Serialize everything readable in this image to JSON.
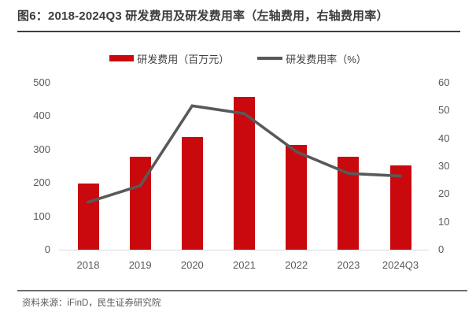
{
  "figure": {
    "title": "图6：2018-2024Q3 研发费用及研发费用率（左轴费用，右轴费用率）",
    "source": "资料来源：iFinD，民生证券研究院"
  },
  "legend": [
    {
      "swatch": "bar-swatch-icon",
      "label": "研发费用（百万元）"
    },
    {
      "swatch": "line-swatch-icon",
      "label": "研发费用率（%）"
    }
  ],
  "colors": {
    "bar": "#c9090d",
    "line": "#595959",
    "title_text": "#3c3c3c",
    "axis_text": "#595959",
    "axis_line": "#d9d9d9",
    "rule_top": "#3e3e3e",
    "rule_bottom": "#6e6e6e"
  },
  "chart_data": {
    "type": "bar",
    "subtype": "bar-and-line-combo",
    "categories": [
      "2018",
      "2019",
      "2020",
      "2021",
      "2022",
      "2023",
      "2024Q3"
    ],
    "series": [
      {
        "name": "研发费用（百万元）",
        "type": "bar",
        "axis": "left",
        "values": [
          198,
          278,
          337,
          457,
          313,
          279,
          252
        ]
      },
      {
        "name": "研发费用率（%）",
        "type": "line",
        "axis": "right",
        "values": [
          17.1,
          23.0,
          51.7,
          48.9,
          35.2,
          27.4,
          26.5
        ]
      }
    ],
    "left_axis": {
      "min": 0,
      "max": 500,
      "step": 100,
      "ticks": [
        0,
        100,
        200,
        300,
        400,
        500
      ]
    },
    "right_axis": {
      "min": 0,
      "max": 60,
      "step": 10,
      "ticks": [
        0,
        10,
        20,
        30,
        40,
        50,
        60
      ]
    },
    "grid": false,
    "legend_position": "top-center"
  }
}
